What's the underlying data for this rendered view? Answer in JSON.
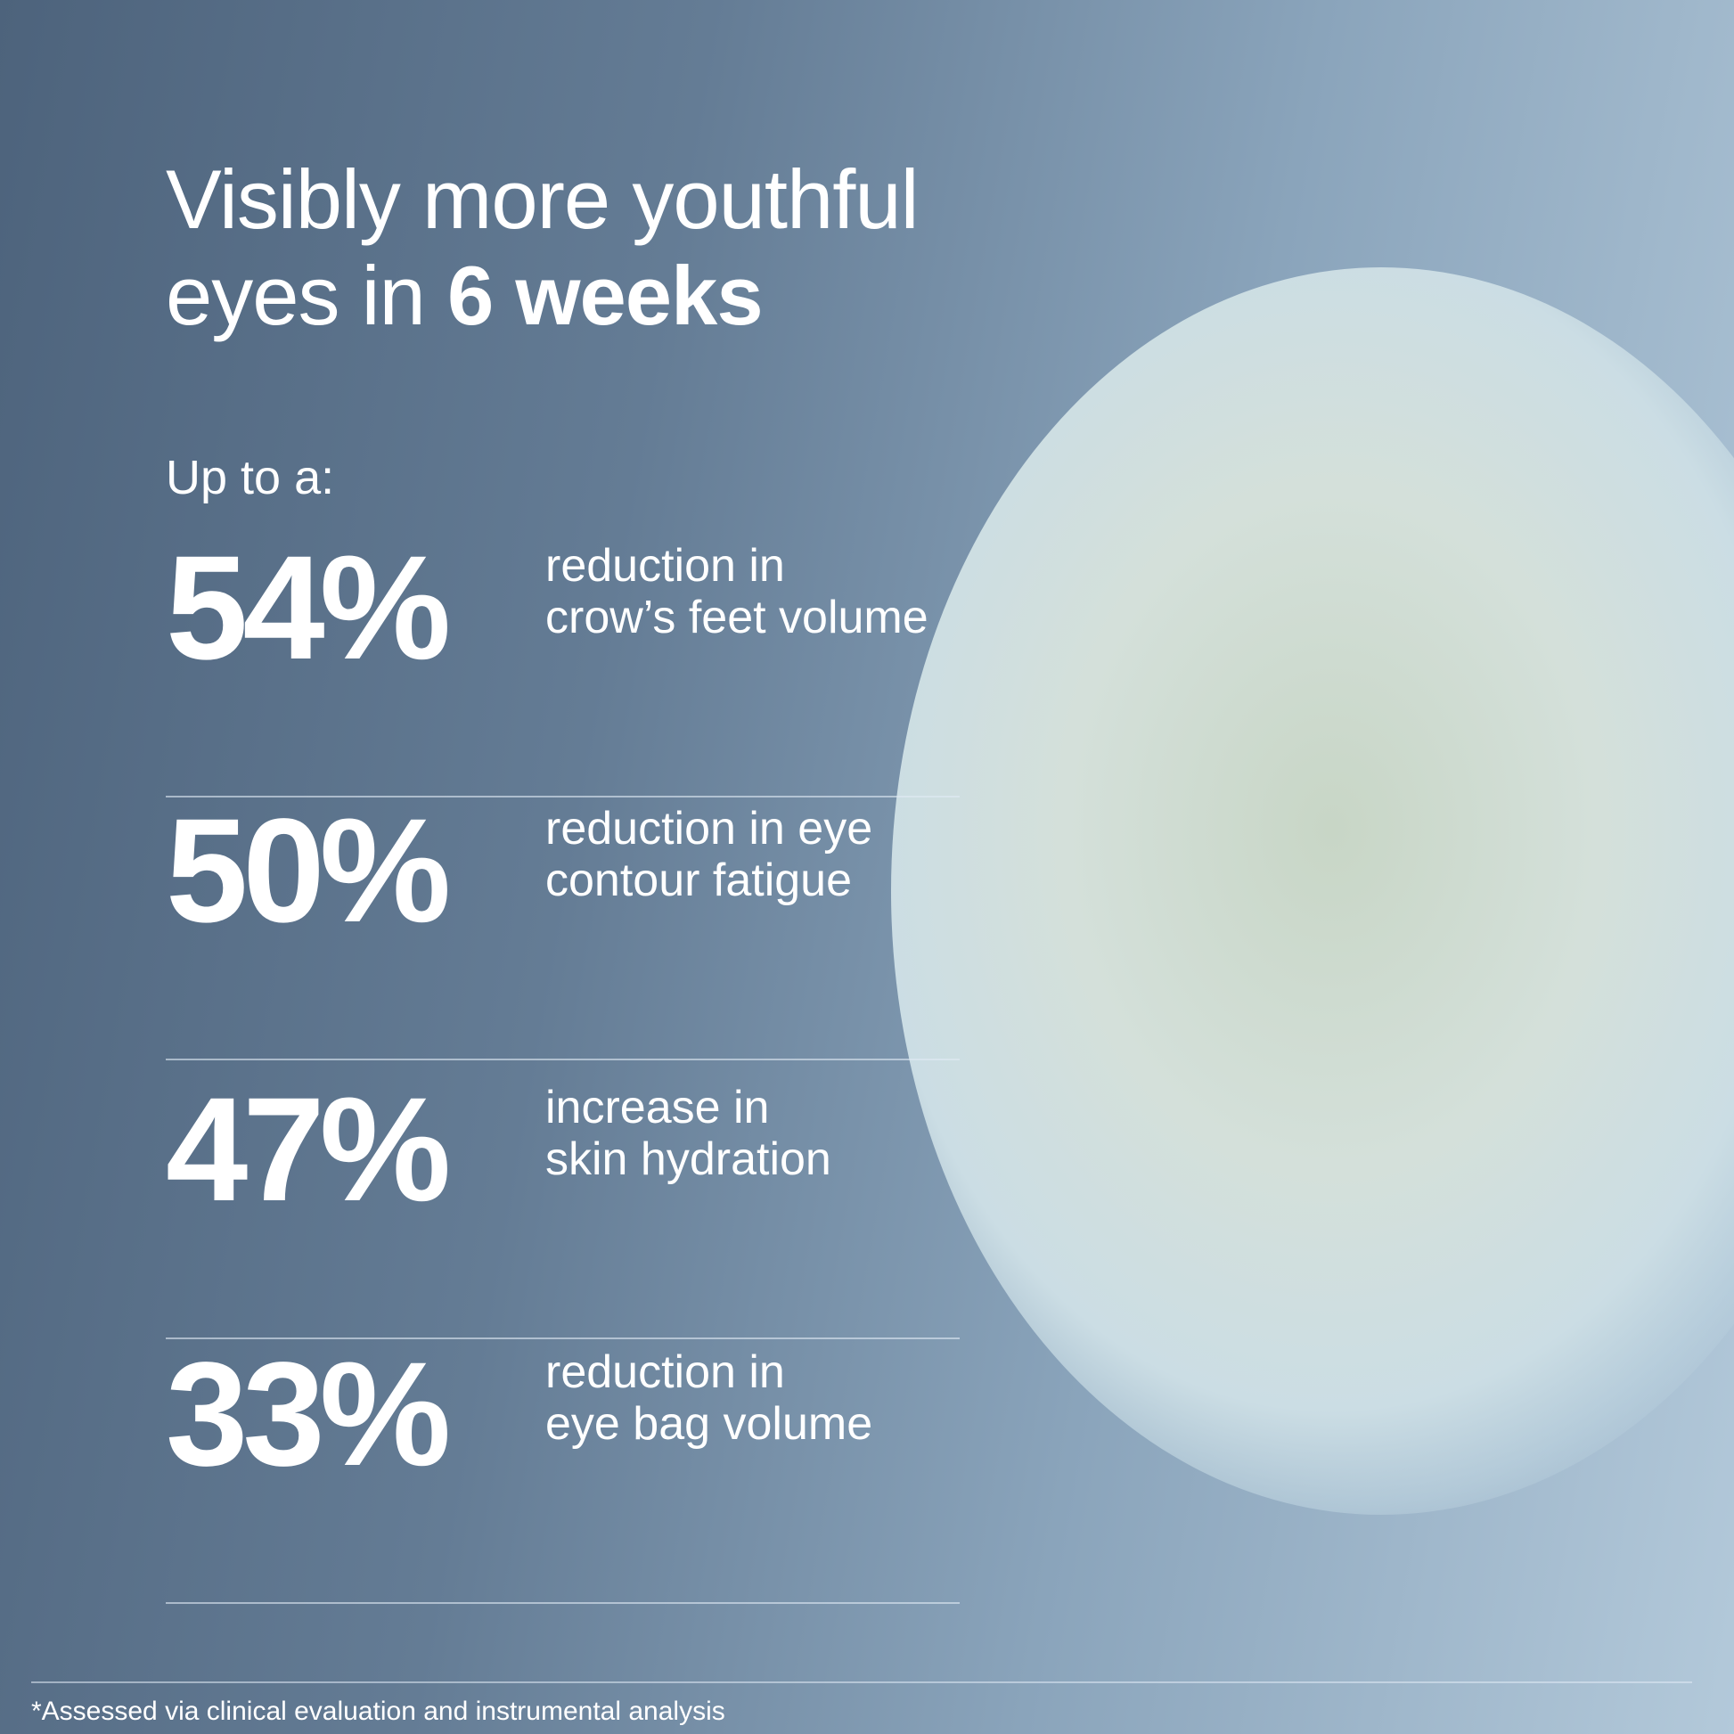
{
  "header": {
    "title": "Visibly more youthful eyes in",
    "title_emphasis": "6 weeks",
    "intro": "Up to a:"
  },
  "stats": [
    {
      "value": "54%",
      "lines": [
        "reduction in",
        "crow’s feet volume"
      ]
    },
    {
      "value": "50%",
      "lines": [
        "reduction in eye",
        "contour fatigue"
      ]
    },
    {
      "value": "47%",
      "lines": [
        "increase in",
        "skin hydration"
      ]
    },
    {
      "value": "33%",
      "lines": [
        "reduction in",
        "eye bag volume"
      ]
    }
  ],
  "footnote": "*Assessed via clinical evaluation and instrumental analysis"
}
